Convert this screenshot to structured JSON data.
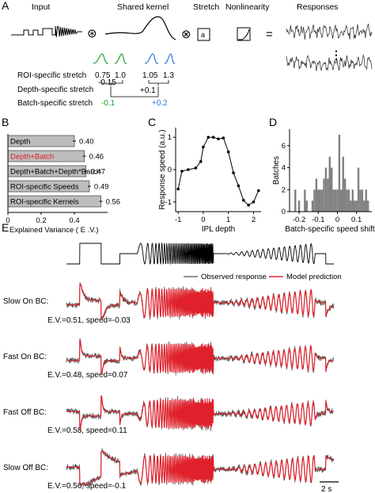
{
  "panel_labels": {
    "a": "A",
    "b": "B",
    "c": "C",
    "d": "D",
    "e": "E"
  },
  "panel_a": {
    "labels": {
      "input": "Input",
      "shared_kernel": "Shared kernel",
      "stretch": "Stretch",
      "nonlinearity": "Nonlinearity",
      "responses": "Responses"
    },
    "operators": {
      "conv": "⊛",
      "mult": "⊗",
      "eq": "="
    },
    "stretch_box": "a",
    "ellipsis": "⋮",
    "rows": {
      "roi": "ROI-specific stretch",
      "depth": "Depth-specific stretch",
      "batch": "Batch-specific stretch"
    },
    "roi_values": [
      "0.75",
      "1.0",
      "1.05",
      "1.3"
    ],
    "depth_values": [
      "-0.15",
      "+0.1"
    ],
    "batch_values": [
      "-0.1",
      "+0.2"
    ],
    "colors": {
      "green": "#22a02a",
      "blue": "#2a7bd6",
      "red": "#e0202a"
    }
  },
  "chart_data": [
    {
      "type": "bar",
      "panel": "B",
      "orientation": "horizontal",
      "categories": [
        "Depth",
        "Depth+Batch",
        "Depth+Batch+Depth*Batch",
        "ROI-specific Speeds",
        "ROI-specific Kernels"
      ],
      "category_colors": [
        "#000000",
        "#e0202a",
        "#000000",
        "#000000",
        "#000000"
      ],
      "values": [
        0.4,
        0.46,
        0.47,
        0.49,
        0.56
      ],
      "value_labels": [
        "0.40",
        "0.46",
        "0.47",
        "0.49",
        "0.56"
      ],
      "xlim": [
        0,
        0.6
      ],
      "xticks": [
        "0",
        "0.2",
        "0.4"
      ],
      "xlabel": "Explained Variance  ( E .V.)"
    },
    {
      "type": "line",
      "panel": "C",
      "x": [
        -1,
        -0.85,
        -0.6,
        -0.3,
        -0.1,
        0.0,
        0.2,
        0.4,
        0.6,
        0.8,
        1.0,
        1.2,
        1.4,
        1.6,
        1.8,
        2.0,
        2.2
      ],
      "y": [
        -0.6,
        -0.05,
        0.0,
        0.05,
        0.25,
        0.7,
        1.0,
        1.0,
        0.95,
        0.98,
        0.55,
        -0.1,
        -0.5,
        -0.95,
        -1.1,
        -1.0,
        -0.65
      ],
      "xlim": [
        -1.1,
        2.3
      ],
      "ylim": [
        -1.3,
        1.3
      ],
      "xticks": [
        "-1",
        "0",
        "1",
        "2"
      ],
      "yticks": [
        "-1",
        "0",
        "1"
      ],
      "xlabel": "IPL depth",
      "ylabel": "Response speed (a.u.)"
    },
    {
      "type": "bar",
      "panel": "D",
      "x": [
        -0.22,
        -0.2,
        -0.17,
        -0.16,
        -0.13,
        -0.12,
        -0.11,
        -0.1,
        -0.09,
        -0.08,
        -0.07,
        -0.06,
        -0.05,
        -0.04,
        -0.03,
        -0.02,
        -0.01,
        0.0,
        0.01,
        0.02,
        0.03,
        0.04,
        0.05,
        0.06,
        0.07,
        0.08,
        0.09,
        0.1,
        0.11,
        0.12,
        0.13,
        0.14,
        0.15,
        0.16
      ],
      "values": [
        2,
        1,
        2,
        1,
        1,
        2,
        3,
        2,
        2,
        2,
        3,
        4,
        3,
        5,
        4,
        2,
        2,
        2,
        7,
        2,
        5,
        3,
        2,
        2,
        1,
        2,
        1,
        1,
        4,
        2,
        2,
        1,
        2,
        1
      ],
      "xlim": [
        -0.25,
        0.18
      ],
      "ylim": [
        0,
        7.5
      ],
      "xticks": [
        "-0.2",
        "-0.1",
        "0",
        "0.1"
      ],
      "yticks": [
        "0",
        "2",
        "4",
        "6"
      ],
      "xlabel": "Batch-specific speed shift",
      "ylabel": "Batches"
    }
  ],
  "panel_e": {
    "legend": {
      "observed": "Observed response",
      "model": "Model prediction"
    },
    "colors": {
      "observed": "#555555",
      "model": "#e0202a"
    },
    "cells": [
      {
        "name": "Slow On BC:",
        "stats": "E.V.=0.51, speed=-0.03"
      },
      {
        "name": "Fast On BC:",
        "stats": "E.V.=0.48, speed=0.07"
      },
      {
        "name": "Fast Off BC:",
        "stats": "E.V.=0.58, speed=0.11"
      },
      {
        "name": "Slow Off BC:",
        "stats": "E.V.=0.56, speed=-0.1"
      }
    ],
    "scalebar": "2 s"
  }
}
